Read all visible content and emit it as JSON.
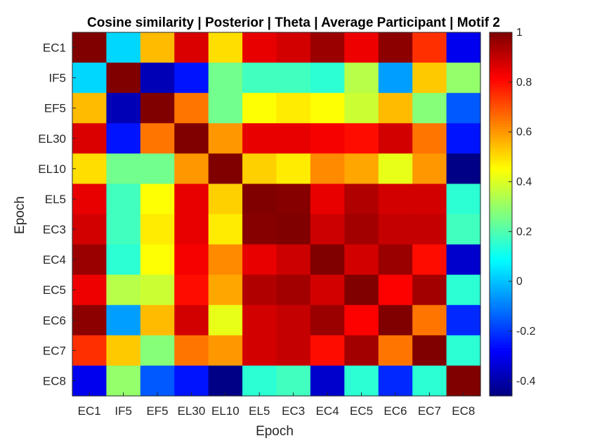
{
  "chart_data": {
    "type": "heatmap",
    "title": "Cosine similarity | Posterior | Theta | Average Participant | Motif 2",
    "xlabel": "Epoch",
    "ylabel": "Epoch",
    "x_categories": [
      "EC1",
      "IF5",
      "EF5",
      "EL30",
      "EL10",
      "EL5",
      "EC3",
      "EC4",
      "EC5",
      "EC6",
      "EC7",
      "EC8"
    ],
    "y_categories": [
      "EC1",
      "IF5",
      "EF5",
      "EL30",
      "EL10",
      "EL5",
      "EC3",
      "EC4",
      "EC5",
      "EC6",
      "EC7",
      "EC8"
    ],
    "values": [
      [
        1.0,
        0.03,
        0.55,
        0.87,
        0.5,
        0.85,
        0.88,
        0.96,
        0.84,
        0.98,
        0.75,
        -0.3
      ],
      [
        0.03,
        1.0,
        -0.38,
        -0.25,
        0.25,
        0.18,
        0.18,
        0.15,
        0.35,
        -0.05,
        0.53,
        0.3
      ],
      [
        0.55,
        -0.38,
        1.0,
        0.65,
        0.25,
        0.45,
        0.48,
        0.45,
        0.38,
        0.55,
        0.28,
        -0.15
      ],
      [
        0.87,
        -0.25,
        0.65,
        1.0,
        0.6,
        0.85,
        0.85,
        0.83,
        0.8,
        0.88,
        0.65,
        -0.25
      ],
      [
        0.5,
        0.25,
        0.25,
        0.6,
        1.0,
        0.52,
        0.48,
        0.62,
        0.58,
        0.42,
        0.6,
        -0.45
      ],
      [
        0.85,
        0.18,
        0.45,
        0.85,
        0.52,
        1.0,
        0.99,
        0.85,
        0.93,
        0.88,
        0.88,
        0.15
      ],
      [
        0.88,
        0.18,
        0.48,
        0.85,
        0.48,
        0.99,
        1.0,
        0.89,
        0.95,
        0.9,
        0.9,
        0.18
      ],
      [
        0.96,
        0.15,
        0.45,
        0.83,
        0.62,
        0.85,
        0.89,
        1.0,
        0.88,
        0.96,
        0.8,
        -0.35
      ],
      [
        0.84,
        0.35,
        0.38,
        0.8,
        0.58,
        0.93,
        0.95,
        0.88,
        1.0,
        0.82,
        0.95,
        0.15
      ],
      [
        0.98,
        -0.05,
        0.55,
        0.88,
        0.42,
        0.88,
        0.9,
        0.96,
        0.82,
        1.0,
        0.65,
        -0.22
      ],
      [
        0.75,
        0.53,
        0.28,
        0.65,
        0.6,
        0.88,
        0.9,
        0.8,
        0.95,
        0.65,
        1.0,
        0.15
      ],
      [
        -0.3,
        0.3,
        -0.15,
        -0.25,
        -0.45,
        0.15,
        0.18,
        -0.35,
        0.15,
        -0.22,
        0.15,
        1.0
      ]
    ],
    "colormap": "jet",
    "clim": [
      -0.46,
      1.0
    ],
    "colorbar_ticks": [
      "-0.4",
      "-0.2",
      "0",
      "0.2",
      "0.4",
      "0.6",
      "0.8",
      "1"
    ],
    "colorbar_position": "right",
    "grid": false
  }
}
